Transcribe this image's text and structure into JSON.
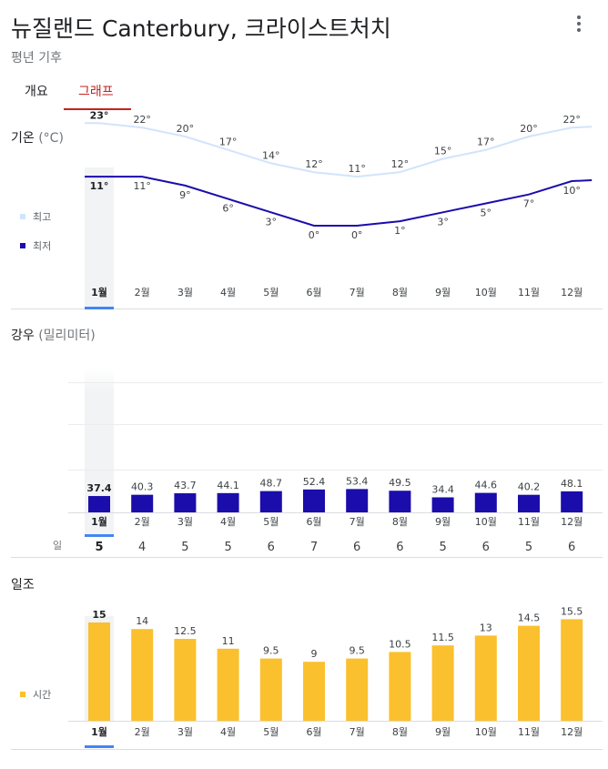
{
  "header": {
    "title": "뉴질랜드 Canterbury, 크라이스트처치",
    "subtitle": "평년 기후"
  },
  "tabs": [
    {
      "label": "개요",
      "active": false
    },
    {
      "label": "그래프",
      "active": true
    }
  ],
  "colors": {
    "accent": "#c5221f",
    "high_line": "#d2e3fc",
    "low_line": "#1a0dab",
    "rain_bar": "#1a0dab",
    "sun_bar": "#fbc02d",
    "selected_month": "#4285f4"
  },
  "months": [
    "1월",
    "2월",
    "3월",
    "4월",
    "5월",
    "6월",
    "7월",
    "8월",
    "9월",
    "10월",
    "11월",
    "12월"
  ],
  "selected_month_index": 0,
  "temperature": {
    "title": "기온",
    "unit": "(°C)",
    "legend_high": "최고",
    "legend_low": "최저"
  },
  "rain": {
    "title": "강우",
    "unit": "(밀리미터)",
    "days_label": "일"
  },
  "sun": {
    "title": "일조",
    "legend": "시간"
  },
  "chart_data": [
    {
      "type": "line",
      "categories": [
        "1월",
        "2월",
        "3월",
        "4월",
        "5월",
        "6월",
        "7월",
        "8월",
        "9월",
        "10월",
        "11월",
        "12월"
      ],
      "series": [
        {
          "name": "최고",
          "values": [
            23,
            22,
            20,
            17,
            14,
            12,
            11,
            12,
            15,
            17,
            20,
            22
          ],
          "labels": [
            "23°",
            "22°",
            "20°",
            "17°",
            "14°",
            "12°",
            "11°",
            "12°",
            "15°",
            "17°",
            "20°",
            "22°"
          ]
        },
        {
          "name": "최저",
          "values": [
            11,
            11,
            9,
            6,
            3,
            0,
            0,
            1,
            3,
            5,
            7,
            10
          ],
          "labels": [
            "11°",
            "11°",
            "9°",
            "6°",
            "3°",
            "0°",
            "0°",
            "1°",
            "3°",
            "5°",
            "7°",
            "10°"
          ]
        }
      ],
      "title": "기온",
      "ylabel": "°C"
    },
    {
      "type": "bar",
      "categories": [
        "1월",
        "2월",
        "3월",
        "4월",
        "5월",
        "6월",
        "7월",
        "8월",
        "9월",
        "10월",
        "11월",
        "12월"
      ],
      "values": [
        37.4,
        40.3,
        43.7,
        44.1,
        48.7,
        52.4,
        53.4,
        49.5,
        34.4,
        44.6,
        40.2,
        48.1
      ],
      "labels": [
        "37.4",
        "40.3",
        "43.7",
        "44.1",
        "48.7",
        "52.4",
        "53.4",
        "49.5",
        "34.4",
        "44.6",
        "40.2",
        "48.1"
      ],
      "days": [
        "5",
        "4",
        "5",
        "5",
        "6",
        "7",
        "6",
        "6",
        "5",
        "6",
        "5",
        "6"
      ],
      "title": "강우",
      "ylabel": "밀리미터",
      "ylim": [
        0,
        200
      ]
    },
    {
      "type": "bar",
      "categories": [
        "1월",
        "2월",
        "3월",
        "4월",
        "5월",
        "6월",
        "7월",
        "8월",
        "9월",
        "10월",
        "11월",
        "12월"
      ],
      "values": [
        15,
        14,
        12.5,
        11,
        9.5,
        9,
        9.5,
        10.5,
        11.5,
        13,
        14.5,
        15.5
      ],
      "labels": [
        "15",
        "14",
        "12.5",
        "11",
        "9.5",
        "9",
        "9.5",
        "10.5",
        "11.5",
        "13",
        "14.5",
        "15.5"
      ],
      "title": "일조",
      "series_name": "시간"
    }
  ]
}
